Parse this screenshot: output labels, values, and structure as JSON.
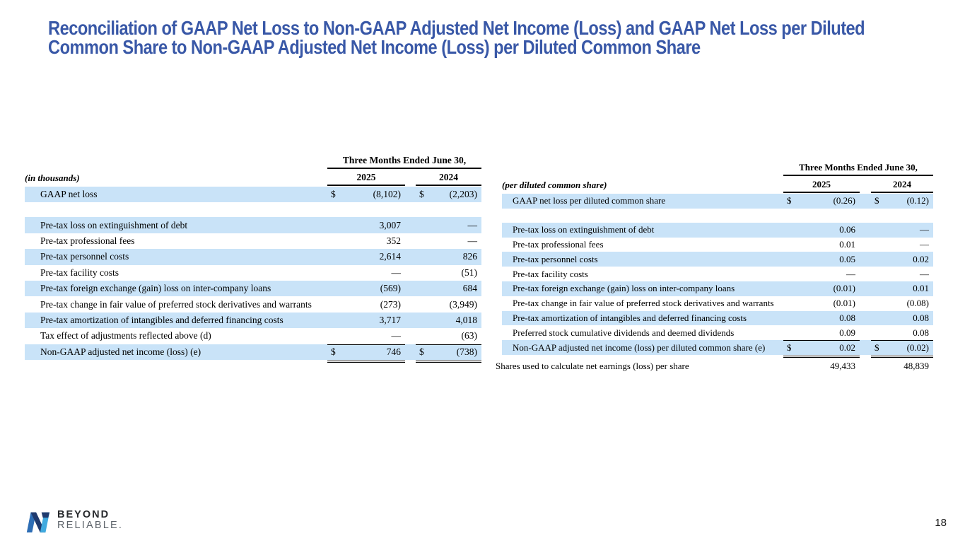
{
  "slide": {
    "title": "Reconciliation of GAAP Net Loss to Non-GAAP Adjusted Net Income (Loss) and GAAP Net Loss per Diluted\nCommon Share to Non-GAAP Adjusted Net Income (Loss) per Diluted Common Share",
    "page_number": "18"
  },
  "colors": {
    "title_blue": "#3958a7",
    "row_highlight": "#c9e3f8",
    "logo_navy": "#1f3a6e",
    "logo_blue": "#2e6eb5",
    "logo_light": "#41aadf",
    "reliable_gray": "#5c6269"
  },
  "logo": {
    "line1": "BEYOND",
    "line2": "RELIABLE."
  },
  "left_table": {
    "unit_label": "(in thousands)",
    "period_header": "Three Months Ended June 30,",
    "year1": "2025",
    "year2": "2024",
    "rows": [
      {
        "label": "GAAP net loss",
        "d1": "$",
        "v1": "(8,102)",
        "d2": "$",
        "v2": "(2,203)",
        "hl": true
      },
      {
        "t": "spacer",
        "h": 21
      },
      {
        "label": "Pre-tax loss on extinguishment of debt",
        "v1": "3,007",
        "v2": "—",
        "hl": true
      },
      {
        "label": "Pre-tax professional fees",
        "v1": "352",
        "v2": "—"
      },
      {
        "label": "Pre-tax personnel costs",
        "v1": "2,614",
        "v2": "826",
        "hl": true
      },
      {
        "label": "Pre-tax facility costs",
        "v1": "—",
        "v2": "(51)"
      },
      {
        "label": "Pre-tax foreign exchange (gain) loss on inter-company loans",
        "v1": "(569)",
        "v2": "684",
        "hl": true
      },
      {
        "label": "Pre-tax change in fair value of preferred stock derivatives and warrants",
        "v1": "(273)",
        "v2": "(3,949)"
      },
      {
        "label": "Pre-tax amortization of intangibles and deferred financing costs",
        "v1": "3,717",
        "v2": "4,018",
        "hl": true
      },
      {
        "label": "Tax effect of adjustments reflected above (d)",
        "v1": "—",
        "v2": "(63)"
      },
      {
        "label": "Non-GAAP adjusted net income (loss)  (e)",
        "d1": "$",
        "v1": "746",
        "d2": "$",
        "v2": "(738)",
        "hl": true,
        "rt": true
      },
      {
        "t": "dblrule"
      }
    ]
  },
  "right_table": {
    "unit_label": "(per diluted common share)",
    "period_header": "Three Months Ended June 30,",
    "year1": "2025",
    "year2": "2024",
    "rows": [
      {
        "label": "GAAP net loss per diluted common share",
        "d1": "$",
        "v1": "(0.26)",
        "d2": "$",
        "v2": "(0.12)",
        "hl": true
      },
      {
        "t": "spacer",
        "h": 20
      },
      {
        "label": "Pre-tax loss on extinguishment of debt",
        "v1": "0.06",
        "v2": "—",
        "hl": true
      },
      {
        "label": "Pre-tax professional fees",
        "v1": "0.01",
        "v2": "—"
      },
      {
        "label": "Pre-tax personnel costs",
        "v1": "0.05",
        "v2": "0.02",
        "hl": true
      },
      {
        "label": "Pre-tax facility costs",
        "v1": "—",
        "v2": "—"
      },
      {
        "label": "Pre-tax foreign exchange (gain) loss on inter-company loans",
        "v1": "(0.01)",
        "v2": "0.01",
        "hl": true
      },
      {
        "label": "Pre-tax change in fair value of preferred stock derivatives and warrants",
        "v1": "(0.01)",
        "v2": "(0.08)"
      },
      {
        "label": "Pre-tax amortization of intangibles and deferred financing costs",
        "v1": "0.08",
        "v2": "0.08",
        "hl": true
      },
      {
        "label": "Preferred stock cumulative dividends and deemed dividends",
        "v1": "0.09",
        "v2": "0.08"
      },
      {
        "label": "Non-GAAP adjusted net income (loss) per diluted common share  (e)",
        "d1": "$",
        "v1": "0.02",
        "d2": "$",
        "v2": "(0.02)",
        "hl": true,
        "rt": true
      },
      {
        "t": "dblrule"
      },
      {
        "label": "Shares used to calculate net earnings (loss) per share",
        "v1": "49,433",
        "v2": "48,839",
        "flush": true
      }
    ]
  }
}
